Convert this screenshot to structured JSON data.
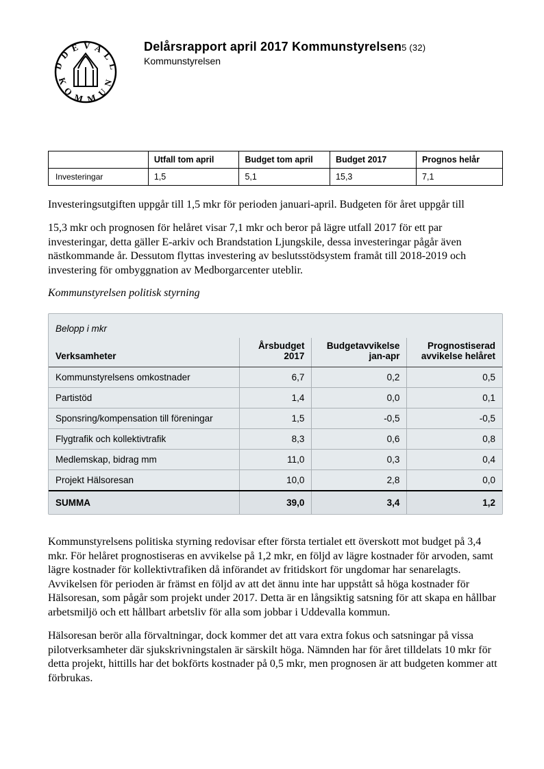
{
  "header": {
    "title_main": "Delårsrapport april 2017 Kommunstyrelsen",
    "page_current": "5",
    "page_total": "(32)",
    "subtitle": "Kommunstyrelsen"
  },
  "table1": {
    "columns": [
      "",
      "Utfall tom april",
      "Budget tom april",
      "Budget 2017",
      "Prognos helår"
    ],
    "row_label": "Investeringar",
    "row_values": [
      "1,5",
      "5,1",
      "15,3",
      "7,1"
    ]
  },
  "paragraphs": {
    "p1": "Investeringsutgiften uppgår till 1,5 mkr för perioden januari-april. Budgeten för året uppgår till",
    "p2": "15,3 mkr och prognosen för helåret visar 7,1 mkr och beror på lägre utfall 2017 för ett par investeringar, detta gäller E-arkiv och Brandstation Ljungskile, dessa investeringar pågår även nästkommande år. Dessutom flyttas investering av beslutsstödsystem framåt till 2018-2019 och investering för ombyggnation av Medborgarcenter uteblir.",
    "p3": "Kommunstyrelsens politiska styrning redovisar efter första tertialet ett överskott mot budget på 3,4 mkr. För helåret prognostiseras en avvikelse på 1,2 mkr, en följd av lägre kostnader för arvoden, samt lägre kostnader för kollektivtrafiken då införandet av fritidskort för ungdomar har senarelagts. Avvikelsen för perioden är främst en följd av att det ännu inte har uppstått så höga kostnader för Hälsoresan, som pågår som projekt under 2017. Detta är en långsiktig satsning för att skapa en hållbar arbetsmiljö och ett hållbart arbetsliv för alla som jobbar i Uddevalla kommun.",
    "p4": "Hälsoresan berör alla förvaltningar, dock kommer det att vara extra fokus och satsningar på vissa pilotverksamheter där sjukskrivningstalen är särskilt höga. Nämnden har för året tilldelats 10 mkr för detta projekt, hittills har det bokförts kostnader på 0,5 mkr, men prognosen är att budgeten kommer att förbrukas."
  },
  "section_title": "Kommunstyrelsen politisk styrning",
  "table2": {
    "unit_label": "Belopp i mkr",
    "columns": {
      "c0": "Verksamheter",
      "c1a": "Årsbudget",
      "c1b": "2017",
      "c2a": "Budgetavvikelse",
      "c2b": "jan-apr",
      "c3a": "Prognostiserad",
      "c3b": "avvikelse helåret"
    },
    "col_widths": [
      "42%",
      "16%",
      "21%",
      "21%"
    ],
    "rows": [
      {
        "label": "Kommunstyrelsens omkostnader",
        "v": [
          "6,7",
          "0,2",
          "0,5"
        ]
      },
      {
        "label": "Partistöd",
        "v": [
          "1,4",
          "0,0",
          "0,1"
        ]
      },
      {
        "label": "Sponsring/kompensation till föreningar",
        "v": [
          "1,5",
          "-0,5",
          "-0,5"
        ]
      },
      {
        "label": "Flygtrafik och kollektivtrafik",
        "v": [
          "8,3",
          "0,6",
          "0,8"
        ]
      },
      {
        "label": "Medlemskap, bidrag mm",
        "v": [
          "11,0",
          "0,3",
          "0,4"
        ]
      },
      {
        "label": "Projekt Hälsoresan",
        "v": [
          "10,0",
          "2,8",
          "0,0"
        ]
      }
    ],
    "sum": {
      "label": "SUMMA",
      "v": [
        "39,0",
        "3,4",
        "1,2"
      ]
    },
    "bg": "#e5eaed",
    "border": "#aab0b5"
  }
}
